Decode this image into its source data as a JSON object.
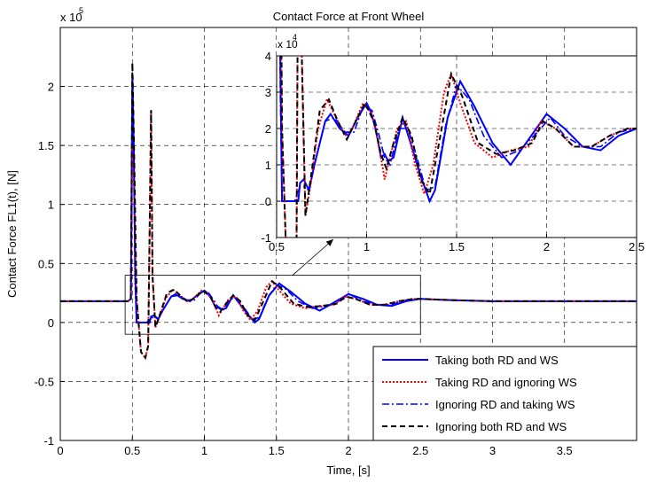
{
  "chart_data": {
    "type": "line",
    "title": "Contact Force at Front Wheel",
    "xlabel": "Time, [s]",
    "ylabel": "Contact Force FL1(t), [N]",
    "main": {
      "xlim": [
        0,
        4
      ],
      "ylim": [
        -100000,
        250000
      ],
      "x_ticks": [
        0,
        0.5,
        1,
        1.5,
        2,
        2.5,
        3,
        3.5
      ],
      "x_tick_labels": [
        "0",
        "0.5",
        "1",
        "1.5",
        "2",
        "2.5",
        "3",
        "3.5"
      ],
      "y_ticks": [
        -100000,
        -50000,
        0,
        50000,
        100000,
        150000,
        200000
      ],
      "y_tick_labels": [
        "-1",
        "-0.5",
        "0",
        "0.5",
        "1",
        "1.5",
        "2"
      ],
      "y_multiplier_base": "x 10",
      "y_multiplier_exp": "5",
      "grid": true
    },
    "inset": {
      "xlim": [
        0.5,
        2.5
      ],
      "ylim": [
        -10000,
        40000
      ],
      "x_ticks": [
        0.5,
        1,
        1.5,
        2,
        2.5
      ],
      "x_tick_labels": [
        "0.5",
        "1",
        "1.5",
        "2",
        "2.5"
      ],
      "y_ticks": [
        -10000,
        0,
        10000,
        20000,
        30000,
        40000
      ],
      "y_tick_labels": [
        "-1",
        "0",
        "1",
        "2",
        "3",
        "4"
      ],
      "y_multiplier_base": "x 10",
      "y_multiplier_exp": "4",
      "grid": true,
      "zoom_box_x": [
        0.45,
        2.5
      ],
      "zoom_box_y": [
        -10000,
        40000
      ]
    },
    "legend_position": "bottom-right",
    "series": [
      {
        "name": "Taking both RD and WS",
        "color": "#0000ff",
        "dash": "solid",
        "x": [
          0,
          0.47,
          0.49,
          0.5,
          0.51,
          0.52,
          0.53,
          0.54,
          0.56,
          0.6,
          0.62,
          0.63,
          0.65,
          0.68,
          0.71,
          0.73,
          0.77,
          0.8,
          0.85,
          0.9,
          0.95,
          1.0,
          1.02,
          1.05,
          1.08,
          1.1,
          1.12,
          1.15,
          1.2,
          1.25,
          1.3,
          1.35,
          1.38,
          1.45,
          1.52,
          1.6,
          1.7,
          1.8,
          1.9,
          2.0,
          2.1,
          2.2,
          2.3,
          2.4,
          2.5,
          2.7,
          3.0,
          3.5,
          4.0
        ],
        "y": [
          18000,
          18000,
          20000,
          210000,
          150000,
          40000,
          0,
          0,
          0,
          0,
          0,
          5000,
          6000,
          3000,
          10000,
          14000,
          22000,
          24000,
          20000,
          18000,
          23000,
          27000,
          25000,
          20000,
          12000,
          13000,
          11000,
          12000,
          23000,
          15000,
          7000,
          0,
          3000,
          23000,
          33000,
          26000,
          16000,
          10000,
          17000,
          24000,
          20000,
          15000,
          14000,
          18000,
          20000,
          19000,
          18000,
          18000,
          18000
        ]
      },
      {
        "name": "Taking RD and ignoring WS",
        "color": "#ff0000",
        "dash": "dotted",
        "x": [
          0,
          0.47,
          0.49,
          0.5,
          0.51,
          0.53,
          0.56,
          0.59,
          0.61,
          0.62,
          0.63,
          0.64,
          0.66,
          0.69,
          0.73,
          0.78,
          0.82,
          0.88,
          0.92,
          0.98,
          1.03,
          1.07,
          1.1,
          1.13,
          1.17,
          1.22,
          1.27,
          1.32,
          1.37,
          1.43,
          1.47,
          1.52,
          1.6,
          1.7,
          1.8,
          1.9,
          1.97,
          2.05,
          2.15,
          2.25,
          2.35,
          2.45,
          2.5,
          2.7,
          3.0,
          3.5,
          4.0
        ],
        "y": [
          18000,
          18000,
          20000,
          150000,
          120000,
          20000,
          -25000,
          -30000,
          -20000,
          80000,
          180000,
          40000,
          -4000,
          5000,
          20000,
          28000,
          24000,
          18000,
          20000,
          27000,
          24000,
          15000,
          6000,
          12000,
          20000,
          22000,
          10000,
          2000,
          10000,
          30000,
          35000,
          27000,
          16000,
          12000,
          14000,
          15000,
          22000,
          20000,
          15000,
          15000,
          18000,
          20000,
          20000,
          19000,
          18000,
          18000,
          18000
        ]
      },
      {
        "name": "Ignoring RD and taking WS",
        "color": "#0000ff",
        "dash": "dashdot",
        "x": [
          0,
          0.47,
          0.49,
          0.5,
          0.51,
          0.52,
          0.53,
          0.54,
          0.56,
          0.6,
          0.63,
          0.65,
          0.68,
          0.72,
          0.77,
          0.82,
          0.88,
          0.93,
          0.98,
          1.03,
          1.07,
          1.1,
          1.13,
          1.18,
          1.23,
          1.28,
          1.33,
          1.38,
          1.44,
          1.5,
          1.57,
          1.65,
          1.75,
          1.85,
          1.95,
          2.02,
          2.1,
          2.2,
          2.3,
          2.4,
          2.5,
          2.7,
          3.0,
          3.5,
          4.0
        ],
        "y": [
          18000,
          18000,
          20000,
          205000,
          140000,
          30000,
          0,
          0,
          0,
          0,
          4000,
          4000,
          3000,
          12000,
          22000,
          23000,
          19000,
          19000,
          26000,
          25000,
          18000,
          12000,
          10000,
          20000,
          20000,
          12000,
          3000,
          4000,
          21000,
          32000,
          28000,
          18000,
          12000,
          14000,
          19000,
          23000,
          18000,
          15000,
          15000,
          19000,
          20000,
          19000,
          18000,
          18000,
          18000
        ]
      },
      {
        "name": "Ignoring both RD and WS",
        "color": "#000000",
        "dash": "dashed",
        "x": [
          0,
          0.47,
          0.49,
          0.5,
          0.51,
          0.53,
          0.56,
          0.59,
          0.61,
          0.62,
          0.63,
          0.64,
          0.66,
          0.7,
          0.74,
          0.79,
          0.84,
          0.89,
          0.94,
          0.99,
          1.04,
          1.08,
          1.11,
          1.15,
          1.2,
          1.25,
          1.3,
          1.35,
          1.41,
          1.47,
          1.53,
          1.62,
          1.72,
          1.82,
          1.92,
          1.98,
          2.05,
          2.15,
          2.25,
          2.35,
          2.45,
          2.5,
          2.7,
          3.0,
          3.5,
          4.0
        ],
        "y": [
          18000,
          18000,
          20000,
          220000,
          160000,
          20000,
          -25000,
          -30000,
          -20000,
          80000,
          180000,
          40000,
          -4000,
          10000,
          25000,
          28000,
          22000,
          17000,
          22000,
          27000,
          22000,
          13000,
          9000,
          16000,
          23000,
          18000,
          6000,
          2000,
          18000,
          35000,
          29000,
          16000,
          13000,
          14000,
          16000,
          22000,
          20000,
          15000,
          15000,
          18000,
          20000,
          20000,
          19000,
          18000,
          18000,
          18000
        ]
      }
    ]
  }
}
